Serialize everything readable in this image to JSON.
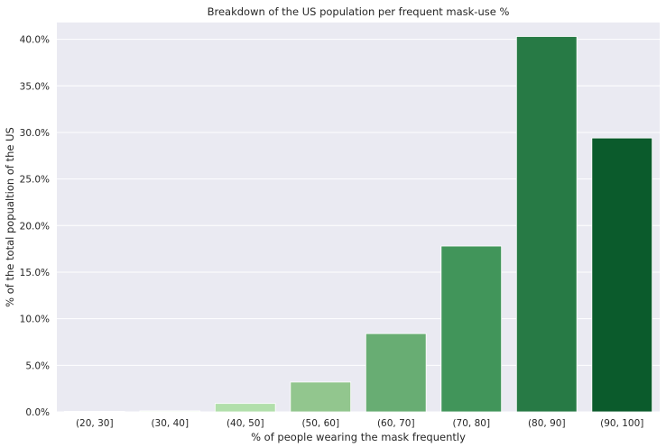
{
  "chart_data": {
    "type": "bar",
    "title": "Breakdown of the US population per frequent mask-use %",
    "xlabel": "% of people wearing the mask frequently",
    "ylabel": "% of the total popualtion of the US",
    "categories": [
      "(20, 30]",
      "(30, 40]",
      "(40, 50]",
      "(50, 60]",
      "(60, 70]",
      "(70, 80]",
      "(80, 90]",
      "(90, 100]"
    ],
    "values": [
      0.05,
      0.1,
      0.9,
      3.2,
      8.4,
      17.8,
      40.3,
      29.4
    ],
    "ylim": [
      0,
      41.8
    ],
    "yticks": [
      0,
      5,
      10,
      15,
      20,
      25,
      30,
      35,
      40
    ],
    "ytick_labels": [
      "0.0%",
      "5.0%",
      "10.0%",
      "15.0%",
      "20.0%",
      "25.0%",
      "30.0%",
      "35.0%",
      "40.0%"
    ],
    "grid": true,
    "colors": [
      "#f7fcf5",
      "#e5f5e0",
      "#b1dfab",
      "#92c68e",
      "#68ad73",
      "#41955a",
      "#277a45",
      "#0b5b2c"
    ],
    "background": "#eaeaf2"
  }
}
